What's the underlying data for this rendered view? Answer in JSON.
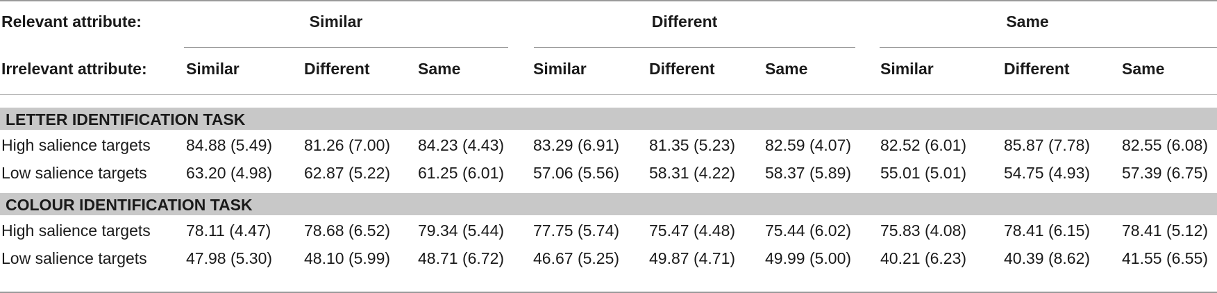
{
  "header": {
    "relevant_label": "Relevant attribute:",
    "irrelevant_label": "Irrelevant attribute:",
    "groups": [
      "Similar",
      "Different",
      "Same"
    ],
    "subcolumns": [
      "Similar",
      "Different",
      "Same",
      "Similar",
      "Different",
      "Same",
      "Similar",
      "Different",
      "Same"
    ]
  },
  "sections": [
    {
      "title": "LETTER IDENTIFICATION TASK",
      "rows": [
        {
          "label": "High salience targets",
          "values": [
            "84.88 (5.49)",
            "81.26 (7.00)",
            "84.23 (4.43)",
            "83.29 (6.91)",
            "81.35 (5.23)",
            "82.59 (4.07)",
            "82.52 (6.01)",
            "85.87 (7.78)",
            "82.55 (6.08)"
          ]
        },
        {
          "label": "Low salience targets",
          "values": [
            "63.20 (4.98)",
            "62.87 (5.22)",
            "61.25 (6.01)",
            "57.06 (5.56)",
            "58.31 (4.22)",
            "58.37 (5.89)",
            "55.01 (5.01)",
            "54.75 (4.93)",
            "57.39 (6.75)"
          ]
        }
      ]
    },
    {
      "title": "COLOUR IDENTIFICATION TASK",
      "rows": [
        {
          "label": "High salience targets",
          "values": [
            "78.11 (4.47)",
            "78.68 (6.52)",
            "79.34 (5.44)",
            "77.75 (5.74)",
            "75.47 (4.48)",
            "75.44 (6.02)",
            "75.83 (4.08)",
            "78.41 (6.15)",
            "78.41 (5.12)"
          ]
        },
        {
          "label": "Low salience targets",
          "values": [
            "47.98 (5.30)",
            "48.10 (5.99)",
            "48.71 (6.72)",
            "46.67 (5.25)",
            "49.87 (4.71)",
            "49.99 (5.00)",
            "40.21 (6.23)",
            "40.39 (8.62)",
            "41.55 (6.55)"
          ]
        }
      ]
    }
  ]
}
